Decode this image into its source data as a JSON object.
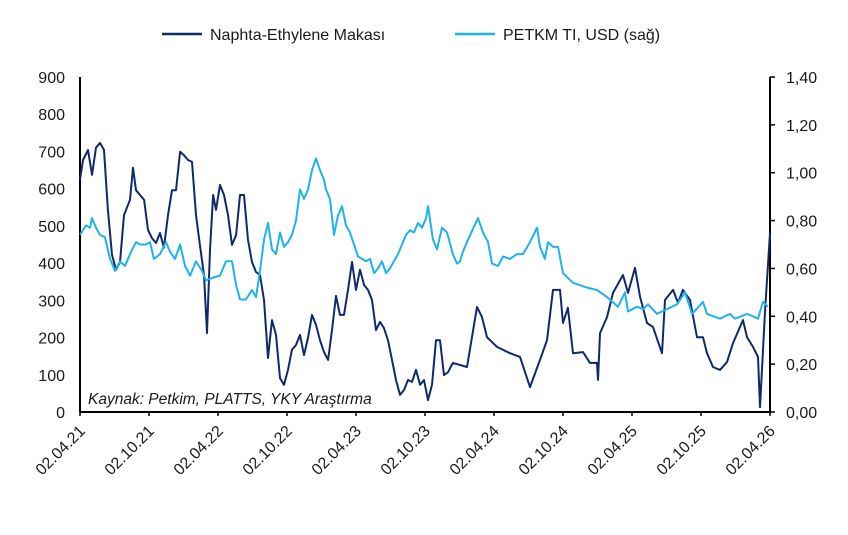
{
  "chart_data": {
    "type": "line",
    "title": "",
    "source": "Kaynak: Petkim, PLATTS, YKY Araştırma",
    "x_unit": "months since 02.04.21",
    "x_tick_labels": [
      "02.04.21",
      "02.10.21",
      "02.04.22",
      "02.10.22",
      "02.04.23",
      "02.10.23",
      "02.04.24",
      "02.10.24",
      "02.04.25",
      "02.10.25",
      "02.04.26"
    ],
    "x_range": [
      0,
      60
    ],
    "y_left": {
      "ticks": [
        "0",
        "100",
        "200",
        "300",
        "400",
        "500",
        "600",
        "700",
        "800",
        "900"
      ],
      "range": [
        0,
        900
      ]
    },
    "y_right": {
      "ticks": [
        "0,00",
        "0,20",
        "0,40",
        "0,60",
        "0,80",
        "1,00",
        "1,20",
        "1,40"
      ],
      "range": [
        0,
        1.4
      ]
    },
    "legend": {
      "placement": "top"
    },
    "series": [
      {
        "name": "Naphta-Ethylene Makası",
        "axis": "left",
        "color": "#0f2a6b",
        "x": [
          0,
          0.26,
          0.7,
          1.04,
          1.39,
          1.74,
          2.09,
          2.43,
          2.78,
          3.13,
          3.48,
          3.83,
          4.35,
          4.61,
          4.87,
          5.22,
          5.57,
          5.91,
          6.26,
          6.61,
          6.96,
          7.3,
          7.65,
          8.0,
          8.35,
          8.7,
          9.04,
          9.39,
          9.74,
          10.09,
          10.43,
          10.78,
          11.04,
          11.3,
          11.57,
          11.83,
          12.17,
          12.52,
          12.87,
          13.22,
          13.57,
          13.91,
          14.26,
          14.61,
          14.96,
          15.3,
          15.65,
          16.0,
          16.35,
          16.7,
          17.04,
          17.39,
          17.74,
          18.09,
          18.43,
          18.78,
          19.13,
          19.48,
          19.83,
          20.17,
          20.52,
          20.87,
          21.22,
          21.57,
          21.91,
          22.26,
          22.61,
          22.96,
          23.3,
          23.65,
          24.0,
          24.35,
          24.7,
          25.04,
          25.39,
          25.74,
          26.09,
          26.43,
          26.78,
          27.13,
          27.48,
          27.83,
          28.17,
          28.52,
          28.87,
          29.22,
          29.57,
          29.91,
          30.26,
          30.61,
          30.96,
          31.3,
          31.65,
          32.0,
          32.43,
          33.65,
          34.52,
          34.96,
          35.39,
          36.26,
          37.39,
          38.26,
          39.13,
          40.0,
          40.61,
          41.13,
          41.74,
          42.0,
          42.43,
          42.87,
          43.74,
          44.35,
          44.96,
          45.04,
          45.22,
          45.83,
          46.35,
          47.22,
          47.65,
          48.26,
          48.7,
          49.3,
          49.83,
          50.61,
          50.87,
          51.57,
          52.0,
          52.43,
          53.04,
          53.65,
          54.17,
          54.52,
          55.04,
          55.65,
          56.26,
          56.78,
          57.65,
          58.0,
          58.52,
          58.96,
          59.13,
          59.57,
          60.0
        ],
        "values": [
          625,
          677,
          704,
          637,
          710,
          723,
          704,
          543,
          422,
          382,
          403,
          529,
          570,
          656,
          596,
          583,
          570,
          489,
          467,
          454,
          481,
          441,
          529,
          596,
          596,
          699,
          690,
          677,
          672,
          529,
          449,
          368,
          212,
          435,
          583,
          543,
          610,
          583,
          529,
          449,
          475,
          583,
          583,
          462,
          403,
          376,
          368,
          301,
          145,
          247,
          207,
          91,
          73,
          113,
          167,
          180,
          207,
          153,
          199,
          261,
          234,
          193,
          161,
          140,
          220,
          312,
          261,
          261,
          328,
          403,
          328,
          382,
          341,
          328,
          301,
          220,
          242,
          226,
          193,
          140,
          86,
          46,
          59,
          86,
          81,
          113,
          73,
          86,
          32,
          73,
          193,
          193,
          99,
          107,
          132,
          121,
          282,
          255,
          201,
          175,
          158,
          148,
          67,
          140,
          193,
          328,
          328,
          239,
          280,
          158,
          161,
          132,
          132,
          86,
          212,
          255,
          320,
          368,
          320,
          387,
          309,
          239,
          228,
          158,
          301,
          328,
          293,
          328,
          301,
          201,
          201,
          158,
          121,
          113,
          134,
          185,
          247,
          201,
          175,
          148,
          13,
          274,
          481
        ]
      },
      {
        "name": "PETKM TI, USD (sağ)",
        "axis": "right",
        "color": "#1fb3ea",
        "x": [
          0,
          0.52,
          0.87,
          1.04,
          1.39,
          1.74,
          2.17,
          2.61,
          3.04,
          3.48,
          3.91,
          4.35,
          4.87,
          5.22,
          5.74,
          6.09,
          6.43,
          6.96,
          7.48,
          7.83,
          8.26,
          8.7,
          9.13,
          9.57,
          10.09,
          10.61,
          10.96,
          11.48,
          12.17,
          12.7,
          13.22,
          13.57,
          13.91,
          14.43,
          14.96,
          15.3,
          15.65,
          16.0,
          16.35,
          16.7,
          17.04,
          17.39,
          17.74,
          18.09,
          18.43,
          18.78,
          19.13,
          19.48,
          19.83,
          20.17,
          20.52,
          20.87,
          21.22,
          21.39,
          21.74,
          22.09,
          22.43,
          22.78,
          23.13,
          23.48,
          23.83,
          24.17,
          24.52,
          24.87,
          25.22,
          25.57,
          25.91,
          26.26,
          26.61,
          26.96,
          27.3,
          27.65,
          28.0,
          28.35,
          28.7,
          29.04,
          29.39,
          29.74,
          30.09,
          30.26,
          30.7,
          31.04,
          31.48,
          31.91,
          32.43,
          32.78,
          33.04,
          33.3,
          33.74,
          34.61,
          35.04,
          35.48,
          35.83,
          36.35,
          36.78,
          37.39,
          38.0,
          38.52,
          39.13,
          39.74,
          40.0,
          40.43,
          40.7,
          41.13,
          41.57,
          42.0,
          42.87,
          44.09,
          44.96,
          45.83,
          46.78,
          47.39,
          47.65,
          48.43,
          48.96,
          49.39,
          50.17,
          51.04,
          51.91,
          52.61,
          53.22,
          54.17,
          54.52,
          55.65,
          56.52,
          56.96,
          58.0,
          58.52,
          58.96,
          59.39,
          59.83
        ],
        "values": [
          0.74,
          0.78,
          0.77,
          0.81,
          0.77,
          0.74,
          0.73,
          0.64,
          0.59,
          0.63,
          0.61,
          0.66,
          0.71,
          0.7,
          0.7,
          0.71,
          0.64,
          0.66,
          0.71,
          0.67,
          0.64,
          0.7,
          0.61,
          0.57,
          0.63,
          0.59,
          0.55,
          0.56,
          0.57,
          0.63,
          0.63,
          0.53,
          0.47,
          0.47,
          0.51,
          0.48,
          0.59,
          0.72,
          0.79,
          0.68,
          0.66,
          0.75,
          0.69,
          0.71,
          0.74,
          0.8,
          0.93,
          0.89,
          0.93,
          1.01,
          1.06,
          1.01,
          0.97,
          0.93,
          0.89,
          0.74,
          0.82,
          0.86,
          0.78,
          0.75,
          0.7,
          0.65,
          0.64,
          0.63,
          0.64,
          0.58,
          0.6,
          0.63,
          0.58,
          0.6,
          0.63,
          0.66,
          0.7,
          0.74,
          0.76,
          0.75,
          0.79,
          0.77,
          0.81,
          0.86,
          0.72,
          0.68,
          0.77,
          0.75,
          0.66,
          0.62,
          0.63,
          0.67,
          0.72,
          0.81,
          0.75,
          0.71,
          0.62,
          0.61,
          0.65,
          0.64,
          0.66,
          0.66,
          0.71,
          0.77,
          0.69,
          0.64,
          0.71,
          0.69,
          0.69,
          0.58,
          0.54,
          0.52,
          0.51,
          0.48,
          0.44,
          0.5,
          0.42,
          0.44,
          0.43,
          0.45,
          0.41,
          0.43,
          0.45,
          0.5,
          0.41,
          0.46,
          0.41,
          0.39,
          0.41,
          0.39,
          0.41,
          0.4,
          0.39,
          0.46,
          0.44
        ]
      }
    ]
  }
}
